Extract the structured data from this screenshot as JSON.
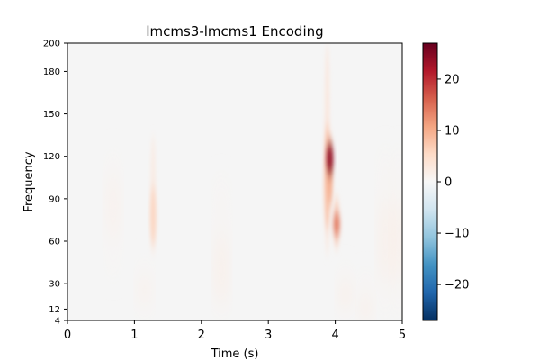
{
  "chart_data": {
    "type": "heatmap",
    "title": "lmcms3-lmcms1 Encoding",
    "xlabel": "Time (s)",
    "ylabel": "Frequency",
    "xlim": [
      0,
      5
    ],
    "ylim": [
      4,
      200
    ],
    "x_ticks": [
      0,
      1,
      2,
      3,
      4,
      5
    ],
    "y_ticks": [
      4,
      12,
      30,
      60,
      90,
      120,
      150,
      180,
      200
    ],
    "colorbar": {
      "colormap": "RdBu_r",
      "vmin": -27,
      "vmax": 27,
      "ticks": [
        20,
        10,
        0,
        -10,
        -20
      ],
      "tick_labels": [
        "20",
        "10",
        "0",
        "−10",
        "−20"
      ]
    },
    "background_value": 0,
    "features": [
      {
        "time": 0.68,
        "freq_low": 30,
        "freq_high": 128,
        "peak_freq": 85,
        "value": 1.5
      },
      {
        "time": 1.28,
        "freq_low": 50,
        "freq_high": 135,
        "peak_freq": 78,
        "value": 6
      },
      {
        "time": 1.15,
        "freq_low": 4,
        "freq_high": 50,
        "peak_freq": 25,
        "value": 1.5
      },
      {
        "time": 2.3,
        "freq_low": 4,
        "freq_high": 110,
        "peak_freq": 40,
        "value": 2
      },
      {
        "time": 3.88,
        "freq_low": 50,
        "freq_high": 200,
        "peak_freq": 105,
        "value": 8
      },
      {
        "time": 3.92,
        "freq_low": 85,
        "freq_high": 135,
        "peak_freq": 118,
        "value": 24
      },
      {
        "time": 4.02,
        "freq_low": 55,
        "freq_high": 92,
        "peak_freq": 72,
        "value": 14
      },
      {
        "time": 4.15,
        "freq_low": 4,
        "freq_high": 45,
        "peak_freq": 22,
        "value": 2
      },
      {
        "time": 4.45,
        "freq_low": 4,
        "freq_high": 40,
        "peak_freq": 12,
        "value": 2
      },
      {
        "time": 4.75,
        "freq_low": 4,
        "freq_high": 130,
        "peak_freq": 60,
        "value": 2
      },
      {
        "time": 4.95,
        "freq_low": 4,
        "freq_high": 130,
        "peak_freq": 60,
        "value": 2
      }
    ]
  }
}
